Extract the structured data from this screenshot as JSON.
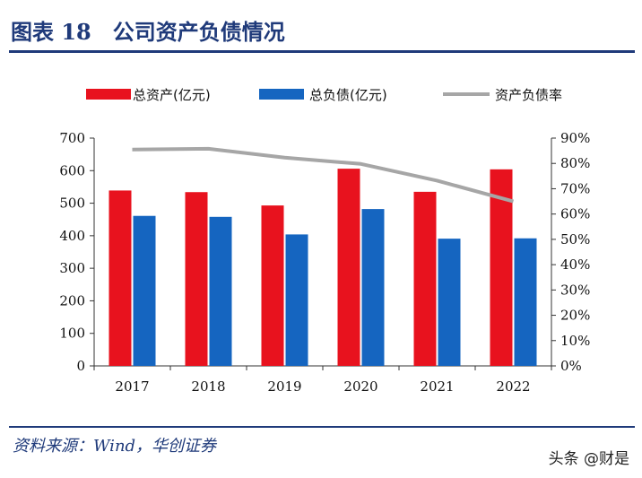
{
  "header": {
    "title": "图表 18　公司资产负债情况"
  },
  "footer": {
    "source": "资料来源：Wind，华创证券",
    "watermark": "头条 @财是"
  },
  "chart_data": {
    "type": "bar",
    "categories": [
      "2017",
      "2018",
      "2019",
      "2020",
      "2021",
      "2022"
    ],
    "series": [
      {
        "name": "总资产(亿元)",
        "type": "bar",
        "axis": "left",
        "color": "#e8121e",
        "values": [
          539,
          534,
          493,
          606,
          535,
          604
        ]
      },
      {
        "name": "总负债(亿元)",
        "type": "bar",
        "axis": "left",
        "color": "#1565c0",
        "values": [
          461,
          458,
          404,
          482,
          391,
          392
        ]
      },
      {
        "name": "资产负债率",
        "type": "line",
        "axis": "right",
        "color": "#a6a6a6",
        "values": [
          85.5,
          85.8,
          82.3,
          79.8,
          73.2,
          65.0
        ]
      }
    ],
    "ylim": [
      0,
      700
    ],
    "yticks": [
      "0",
      "100",
      "200",
      "300",
      "400",
      "500",
      "600",
      "700"
    ],
    "y2lim": [
      0,
      90
    ],
    "y2ticks": [
      "0%",
      "10%",
      "20%",
      "30%",
      "40%",
      "50%",
      "60%",
      "70%",
      "80%",
      "90%"
    ],
    "legend_position": "top"
  }
}
